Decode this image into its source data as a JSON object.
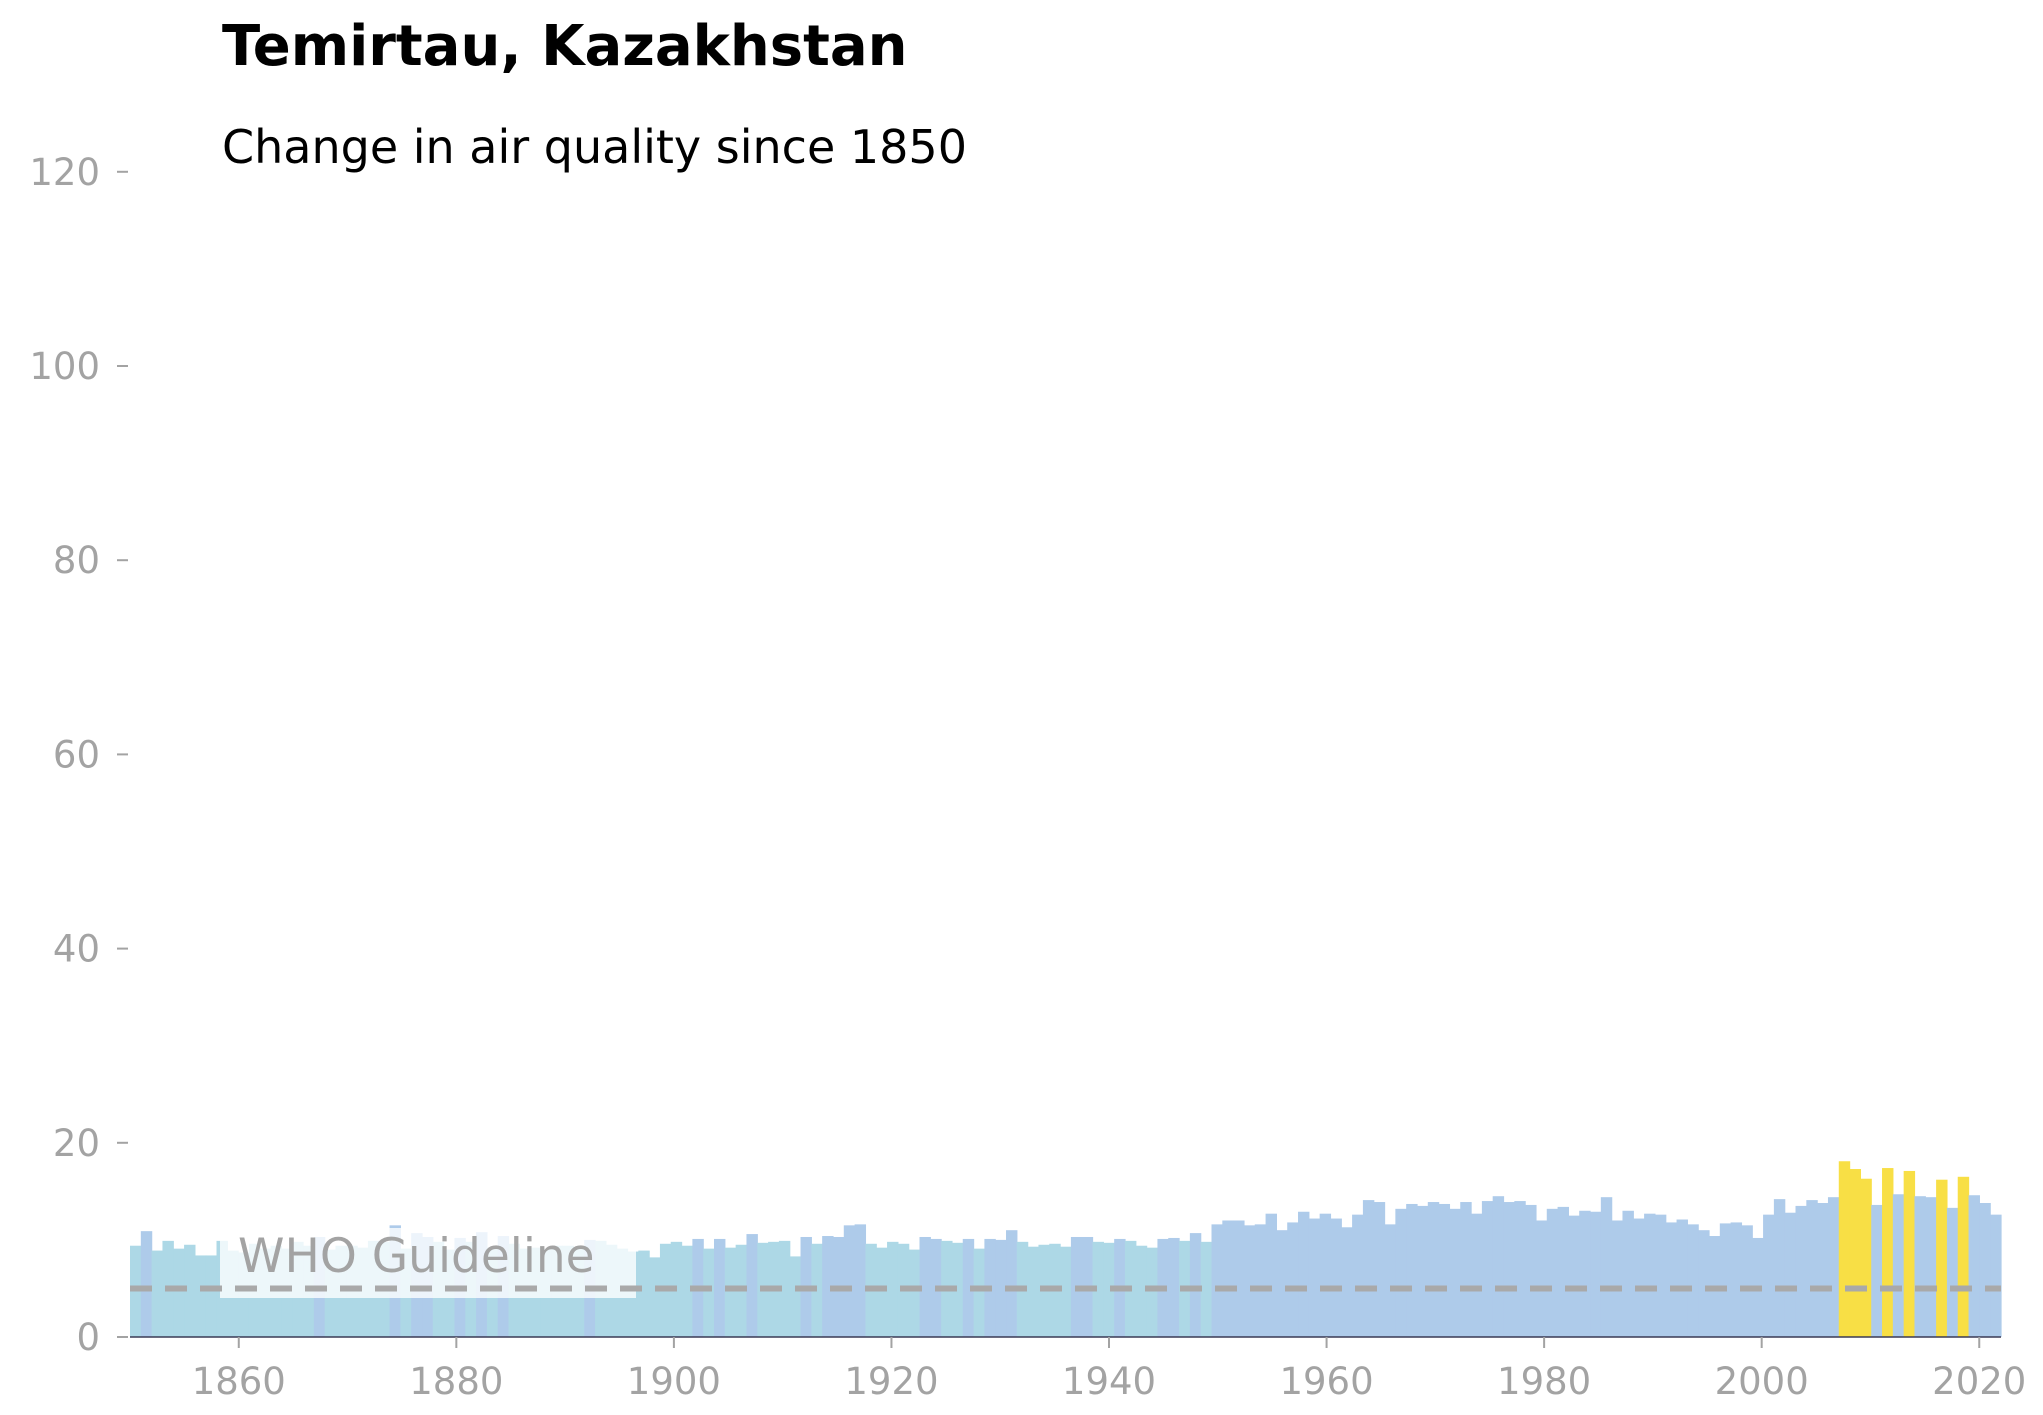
{
  "chart_data": {
    "type": "bar",
    "title": "Temirtau, Kazakhstan",
    "subtitle": "Change in air quality since 1850",
    "xlabel": "",
    "ylabel": "",
    "ylim": [
      0,
      120
    ],
    "xlim": [
      1850,
      2022
    ],
    "y_ticks": [
      0,
      20,
      40,
      60,
      80,
      100,
      120
    ],
    "x_ticks": [
      1860,
      1880,
      1900,
      1920,
      1940,
      1960,
      1980,
      2000,
      2020
    ],
    "grid": false,
    "legend": "none",
    "colors": {
      "below_guideline": "#add8e6",
      "above_guideline": "#aecbea",
      "recent_high": "#f8df45",
      "guideline": "#a9a9a9",
      "axis_text": "#a3a3a3"
    },
    "guideline": {
      "label": "WHO Guideline",
      "value": 5
    },
    "first_year": 1850,
    "values": [
      9.4,
      10.9,
      8.9,
      9.9,
      9.1,
      9.5,
      8.4,
      8.4,
      9.9,
      8.9,
      8.7,
      9.6,
      9.1,
      9.4,
      9.1,
      9.8,
      9.4,
      10.3,
      9.0,
      9.4,
      9.4,
      9.2,
      9.9,
      9.8,
      11.5,
      9.1,
      10.7,
      10.3,
      9.8,
      9.0,
      10.2,
      9.8,
      10.8,
      9.2,
      10.4,
      9.6,
      9.1,
      9.2,
      9.1,
      9.4,
      9.4,
      9.2,
      10.0,
      9.9,
      9.5,
      9.1,
      8.8,
      8.9,
      8.2,
      9.6,
      9.8,
      9.4,
      10.1,
      9.1,
      10.1,
      9.2,
      9.5,
      10.6,
      9.7,
      9.8,
      9.9,
      8.3,
      10.3,
      9.6,
      10.4,
      10.3,
      11.5,
      11.6,
      9.6,
      9.2,
      9.8,
      9.6,
      9.0,
      10.3,
      10.1,
      9.9,
      9.7,
      10.1,
      9.1,
      10.1,
      10.0,
      11.0,
      9.8,
      9.3,
      9.5,
      9.6,
      9.3,
      10.3,
      10.3,
      9.8,
      9.7,
      10.1,
      9.9,
      9.4,
      9.2,
      10.1,
      10.2,
      9.9,
      10.7,
      9.8,
      11.6,
      12.0,
      12.0,
      11.5,
      11.6,
      12.7,
      11.0,
      11.8,
      12.9,
      12.2,
      12.7,
      12.2,
      11.3,
      12.6,
      14.1,
      13.9,
      11.6,
      13.2,
      13.7,
      13.5,
      13.9,
      13.7,
      13.2,
      13.9,
      12.7,
      14.0,
      14.5,
      13.9,
      14.0,
      13.6,
      12.0,
      13.2,
      13.4,
      12.5,
      13.0,
      12.9,
      14.4,
      12.0,
      13.0,
      12.2,
      12.7,
      12.6,
      11.8,
      12.1,
      11.6,
      11.0,
      10.4,
      11.7,
      11.8,
      11.5,
      10.2,
      12.6,
      14.2,
      12.8,
      13.5,
      14.1,
      13.8,
      14.4,
      18.1,
      17.3,
      16.3,
      13.6,
      17.4,
      14.7,
      17.1,
      14.5,
      14.4,
      16.2,
      13.3,
      16.5,
      14.6,
      13.8,
      12.6
    ]
  }
}
